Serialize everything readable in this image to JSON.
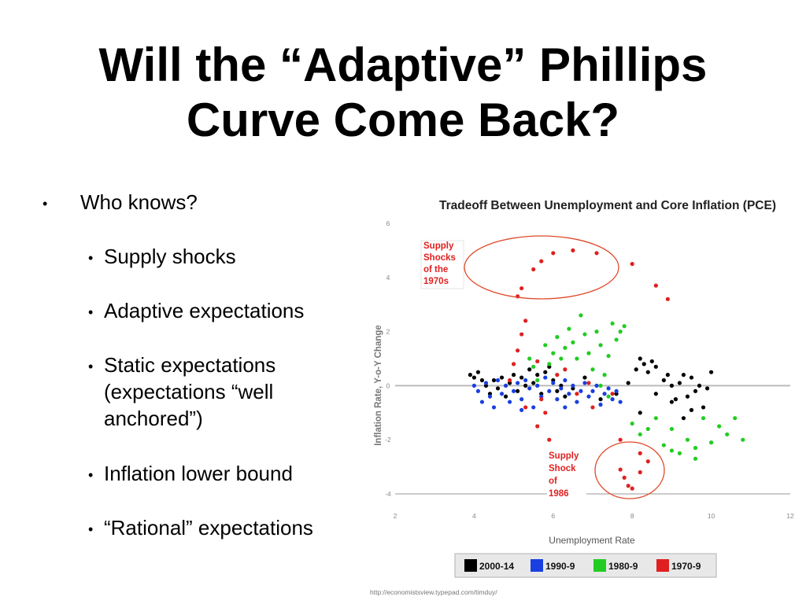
{
  "slide": {
    "title_line1": "Will the “Adaptive” Phillips",
    "title_line2": "Curve Come Back?",
    "bullet_main": "Who knows?",
    "sub_bullets": [
      "Supply shocks",
      "Adaptive expectations",
      "Static expectations (expectations “well anchored”)",
      "Inflation lower bound",
      "“Rational” expectations"
    ],
    "sub_bullet_lines": {
      "static_1": "Static expectations",
      "static_2": "(expectations “well",
      "static_3": "anchored”)"
    }
  },
  "chart_data": {
    "type": "scatter",
    "title": "Tradeoff Between Unemployment and Core Inflation (PCE)",
    "xlabel": "Unemployment Rate",
    "ylabel": "Inflation Rate, Y-o-Y Change",
    "xlim": [
      2,
      12
    ],
    "ylim": [
      -4,
      6
    ],
    "xticks": [
      2,
      4,
      6,
      8,
      10,
      12
    ],
    "yticks": [
      -4,
      -2,
      0,
      2,
      4,
      6
    ],
    "source": "http://economistsview.typepad.com/timduy/",
    "annotations": [
      {
        "label": "Supply Shocks of the 1970s",
        "lines": [
          "Supply",
          "Shocks",
          "of the",
          "1970s"
        ]
      },
      {
        "label": "Supply Shock of 1986",
        "lines": [
          "Supply",
          "Shock",
          "of",
          "1986"
        ]
      }
    ],
    "legend": [
      {
        "label": "2000-14",
        "color": "#000000"
      },
      {
        "label": "1990-9",
        "color": "#1a3fe0"
      },
      {
        "label": "1980-9",
        "color": "#22cc22"
      },
      {
        "label": "1970-9",
        "color": "#e02020"
      }
    ],
    "series": [
      {
        "name": "2000-14",
        "color": "#000000",
        "points": [
          [
            3.9,
            0.4
          ],
          [
            4.0,
            0.3
          ],
          [
            4.1,
            0.5
          ],
          [
            4.2,
            0.2
          ],
          [
            4.3,
            0.0
          ],
          [
            4.4,
            -0.3
          ],
          [
            4.5,
            0.2
          ],
          [
            4.6,
            -0.1
          ],
          [
            4.7,
            0.3
          ],
          [
            4.8,
            -0.4
          ],
          [
            4.9,
            0.1
          ],
          [
            5.0,
            0.4
          ],
          [
            5.1,
            -0.2
          ],
          [
            5.2,
            0.3
          ],
          [
            5.3,
            0.0
          ],
          [
            5.4,
            0.6
          ],
          [
            5.5,
            0.1
          ],
          [
            5.6,
            0.4
          ],
          [
            5.7,
            -0.3
          ],
          [
            5.8,
            0.5
          ],
          [
            5.9,
            0.7
          ],
          [
            6.0,
            0.2
          ],
          [
            6.1,
            -0.2
          ],
          [
            6.2,
            0.0
          ],
          [
            6.3,
            -0.4
          ],
          [
            6.5,
            -0.1
          ],
          [
            6.8,
            0.3
          ],
          [
            7.2,
            -0.5
          ],
          [
            7.6,
            -0.3
          ],
          [
            7.9,
            0.1
          ],
          [
            8.1,
            0.6
          ],
          [
            8.2,
            1.0
          ],
          [
            8.3,
            0.8
          ],
          [
            8.4,
            0.5
          ],
          [
            8.5,
            0.9
          ],
          [
            8.6,
            0.7
          ],
          [
            8.8,
            0.2
          ],
          [
            8.9,
            0.4
          ],
          [
            9.0,
            0.0
          ],
          [
            9.1,
            -0.5
          ],
          [
            9.2,
            0.1
          ],
          [
            9.3,
            0.4
          ],
          [
            9.4,
            -0.4
          ],
          [
            9.5,
            0.3
          ],
          [
            9.6,
            -0.2
          ],
          [
            9.7,
            0.0
          ],
          [
            9.8,
            -0.8
          ],
          [
            9.9,
            -0.1
          ],
          [
            10.0,
            0.5
          ],
          [
            9.5,
            -0.9
          ],
          [
            9.3,
            -1.2
          ],
          [
            8.2,
            -1.0
          ],
          [
            9.0,
            -0.6
          ],
          [
            8.6,
            -0.3
          ]
        ]
      },
      {
        "name": "1990-9",
        "color": "#1a3fe0",
        "points": [
          [
            4.0,
            0.0
          ],
          [
            4.1,
            -0.2
          ],
          [
            4.2,
            -0.6
          ],
          [
            4.3,
            0.1
          ],
          [
            4.4,
            -0.4
          ],
          [
            4.5,
            -0.8
          ],
          [
            4.6,
            0.2
          ],
          [
            4.7,
            -0.3
          ],
          [
            4.8,
            0.0
          ],
          [
            4.9,
            -0.6
          ],
          [
            5.0,
            -0.2
          ],
          [
            5.1,
            0.1
          ],
          [
            5.2,
            -0.5
          ],
          [
            5.3,
            0.2
          ],
          [
            5.4,
            -0.1
          ],
          [
            5.5,
            -0.8
          ],
          [
            5.6,
            0.0
          ],
          [
            5.7,
            -0.4
          ],
          [
            5.8,
            0.3
          ],
          [
            5.9,
            -0.2
          ],
          [
            6.0,
            0.1
          ],
          [
            6.1,
            -0.5
          ],
          [
            6.2,
            -0.1
          ],
          [
            6.3,
            0.2
          ],
          [
            6.4,
            -0.3
          ],
          [
            6.5,
            0.0
          ],
          [
            6.6,
            -0.6
          ],
          [
            6.7,
            -0.2
          ],
          [
            6.8,
            0.1
          ],
          [
            6.9,
            -0.4
          ],
          [
            7.0,
            -0.2
          ],
          [
            7.1,
            0.0
          ],
          [
            7.2,
            -0.7
          ],
          [
            7.3,
            -0.3
          ],
          [
            7.4,
            -0.1
          ],
          [
            7.5,
            -0.5
          ],
          [
            7.6,
            -0.2
          ],
          [
            7.7,
            -0.6
          ],
          [
            6.3,
            -0.8
          ],
          [
            5.2,
            -0.9
          ]
        ]
      },
      {
        "name": "1980-9",
        "color": "#22cc22",
        "points": [
          [
            5.4,
            1.0
          ],
          [
            5.5,
            0.7
          ],
          [
            5.6,
            0.2
          ],
          [
            5.8,
            1.5
          ],
          [
            5.9,
            0.8
          ],
          [
            6.0,
            1.2
          ],
          [
            6.1,
            1.8
          ],
          [
            6.2,
            1.0
          ],
          [
            6.3,
            1.4
          ],
          [
            6.4,
            2.1
          ],
          [
            6.5,
            1.6
          ],
          [
            6.6,
            1.0
          ],
          [
            6.7,
            2.6
          ],
          [
            6.8,
            1.9
          ],
          [
            6.9,
            1.2
          ],
          [
            7.0,
            0.6
          ],
          [
            7.1,
            2.0
          ],
          [
            7.2,
            1.5
          ],
          [
            7.3,
            0.4
          ],
          [
            7.4,
            1.1
          ],
          [
            7.5,
            2.3
          ],
          [
            7.6,
            1.7
          ],
          [
            7.7,
            2.0
          ],
          [
            7.8,
            2.2
          ],
          [
            7.2,
            0.0
          ],
          [
            7.4,
            -0.4
          ],
          [
            8.0,
            -1.4
          ],
          [
            8.2,
            -1.8
          ],
          [
            8.4,
            -1.6
          ],
          [
            8.6,
            -1.2
          ],
          [
            8.8,
            -2.2
          ],
          [
            9.0,
            -1.6
          ],
          [
            9.2,
            -2.5
          ],
          [
            9.4,
            -2.0
          ],
          [
            9.6,
            -2.3
          ],
          [
            9.8,
            -1.2
          ],
          [
            10.0,
            -2.1
          ],
          [
            10.2,
            -1.5
          ],
          [
            10.4,
            -1.8
          ],
          [
            10.6,
            -1.2
          ],
          [
            10.8,
            -2.0
          ],
          [
            9.6,
            -2.7
          ],
          [
            9.0,
            -2.4
          ]
        ]
      },
      {
        "name": "1970-9",
        "color": "#e02020",
        "points": [
          [
            4.9,
            0.2
          ],
          [
            5.0,
            0.8
          ],
          [
            5.1,
            1.3
          ],
          [
            5.2,
            1.9
          ],
          [
            5.3,
            2.4
          ],
          [
            5.1,
            3.3
          ],
          [
            5.2,
            3.6
          ],
          [
            5.5,
            4.3
          ],
          [
            5.7,
            4.6
          ],
          [
            6.0,
            4.9
          ],
          [
            6.5,
            5.0
          ],
          [
            7.1,
            4.9
          ],
          [
            8.0,
            4.5
          ],
          [
            8.6,
            3.7
          ],
          [
            8.9,
            3.2
          ],
          [
            5.7,
            -0.5
          ],
          [
            5.8,
            -1.0
          ],
          [
            5.6,
            -1.5
          ],
          [
            5.9,
            -2.0
          ],
          [
            6.3,
            0.6
          ],
          [
            6.9,
            0.1
          ],
          [
            7.5,
            -0.3
          ],
          [
            7.7,
            -2.0
          ],
          [
            7.7,
            -3.1
          ],
          [
            7.8,
            -3.4
          ],
          [
            7.9,
            -3.7
          ],
          [
            8.0,
            -3.8
          ],
          [
            8.2,
            -3.2
          ],
          [
            8.4,
            -2.8
          ],
          [
            8.2,
            -2.5
          ],
          [
            5.3,
            -0.8
          ],
          [
            5.6,
            0.9
          ],
          [
            6.1,
            0.4
          ],
          [
            6.6,
            -0.3
          ],
          [
            7.0,
            -0.8
          ]
        ]
      }
    ]
  }
}
